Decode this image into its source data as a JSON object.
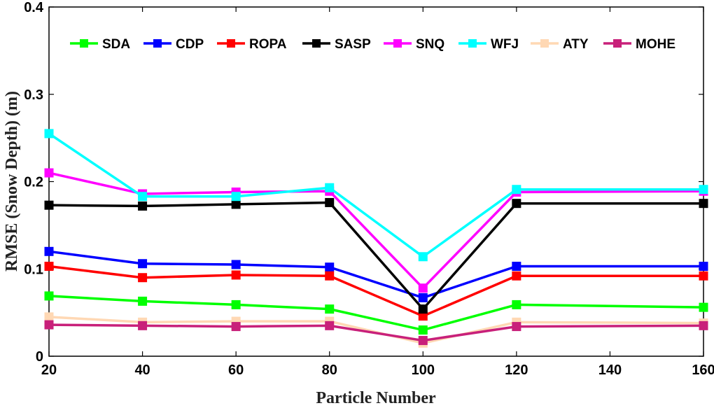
{
  "chart_data": {
    "type": "line",
    "title": "",
    "xlabel": "Particle Number",
    "ylabel": "RMSE (Snow Depth) (m)",
    "xlim": [
      20,
      160
    ],
    "ylim": [
      0,
      0.4
    ],
    "xticks": [
      20,
      40,
      60,
      80,
      100,
      120,
      140,
      160
    ],
    "yticks": [
      0,
      0.1,
      0.2,
      0.3,
      0.4
    ],
    "xtick_labels": [
      "20",
      "40",
      "60",
      "80",
      "100",
      "120",
      "140",
      "160"
    ],
    "ytick_labels": [
      "0",
      "0.1",
      "0.2",
      "0.3",
      "0.4"
    ],
    "grid": false,
    "legend_position": "top",
    "x": [
      20,
      40,
      60,
      80,
      100,
      120,
      160
    ],
    "series": [
      {
        "name": "SDA",
        "color": "#00ff00",
        "values": [
          0.069,
          0.063,
          0.059,
          0.054,
          0.03,
          0.059,
          0.056
        ]
      },
      {
        "name": "CDP",
        "color": "#0000ff",
        "values": [
          0.12,
          0.106,
          0.105,
          0.102,
          0.067,
          0.103,
          0.103
        ]
      },
      {
        "name": "ROPA",
        "color": "#ff0000",
        "values": [
          0.103,
          0.09,
          0.093,
          0.092,
          0.046,
          0.092,
          0.092
        ]
      },
      {
        "name": "SASP",
        "color": "#000000",
        "values": [
          0.173,
          0.172,
          0.174,
          0.176,
          0.054,
          0.175,
          0.175
        ]
      },
      {
        "name": "SNQ",
        "color": "#ff00ff",
        "values": [
          0.21,
          0.186,
          0.188,
          0.189,
          0.078,
          0.188,
          0.189
        ]
      },
      {
        "name": "WFJ",
        "color": "#00ffff",
        "values": [
          0.255,
          0.183,
          0.183,
          0.193,
          0.114,
          0.191,
          0.191
        ]
      },
      {
        "name": "ATY",
        "color": "#ffd8b4",
        "values": [
          0.045,
          0.039,
          0.04,
          0.04,
          0.015,
          0.039,
          0.038
        ]
      },
      {
        "name": "MOHE",
        "color": "#c8207a",
        "values": [
          0.036,
          0.035,
          0.034,
          0.035,
          0.018,
          0.034,
          0.035
        ]
      }
    ]
  }
}
